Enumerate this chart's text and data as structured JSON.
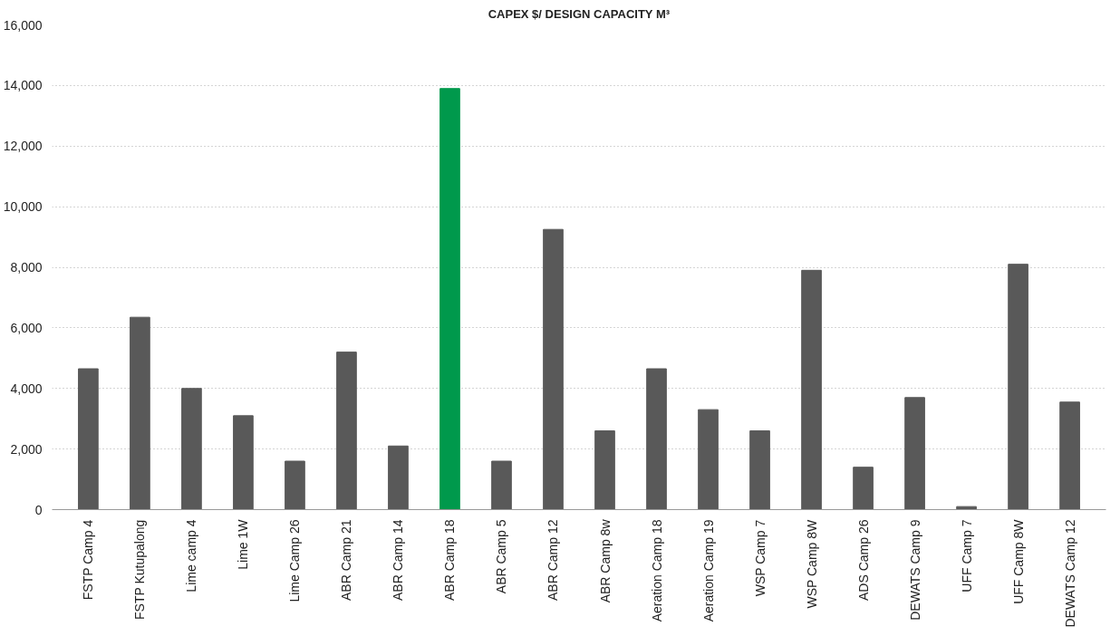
{
  "chart_data": {
    "type": "bar",
    "title": "CAPEX $/ DESIGN CAPACITY M³",
    "categories": [
      "FSTP Camp 4",
      "FSTP Kutupalong",
      "Lime camp 4",
      "Lime 1W",
      "Lime Camp 26",
      "ABR Camp 21",
      "ABR Camp 14",
      "ABR Camp 18",
      "ABR Camp 5",
      "ABR Camp 12",
      "ABR Camp 8w",
      "Aeration Camp 18",
      "Aeration Camp 19",
      "WSP Camp 7",
      "WSP Camp 8W",
      "ADS Camp 26",
      "DEWATS Camp 9",
      "UFF Camp 7",
      "UFF Camp 8W",
      "DEWATS Camp 12"
    ],
    "values": [
      4650,
      6350,
      4000,
      3100,
      1600,
      5200,
      2100,
      13900,
      1600,
      9250,
      2600,
      4650,
      3300,
      2600,
      7900,
      1400,
      3700,
      100,
      8100,
      3550
    ],
    "colors": [
      "#595959",
      "#595959",
      "#595959",
      "#595959",
      "#595959",
      "#595959",
      "#595959",
      "#00994c",
      "#595959",
      "#595959",
      "#595959",
      "#595959",
      "#595959",
      "#595959",
      "#595959",
      "#595959",
      "#595959",
      "#595959",
      "#595959",
      "#595959"
    ],
    "ylim": [
      0,
      16000
    ],
    "yticks": [
      {
        "value": 0,
        "label": "0"
      },
      {
        "value": 2000,
        "label": "2,000"
      },
      {
        "value": 4000,
        "label": "4,000"
      },
      {
        "value": 6000,
        "label": "6,000"
      },
      {
        "value": 8000,
        "label": "8,000"
      },
      {
        "value": 10000,
        "label": "10,000"
      },
      {
        "value": 12000,
        "label": "12,000"
      },
      {
        "value": 14000,
        "label": "14,000"
      },
      {
        "value": 16000,
        "label": "16,000"
      }
    ],
    "grid": "y"
  }
}
